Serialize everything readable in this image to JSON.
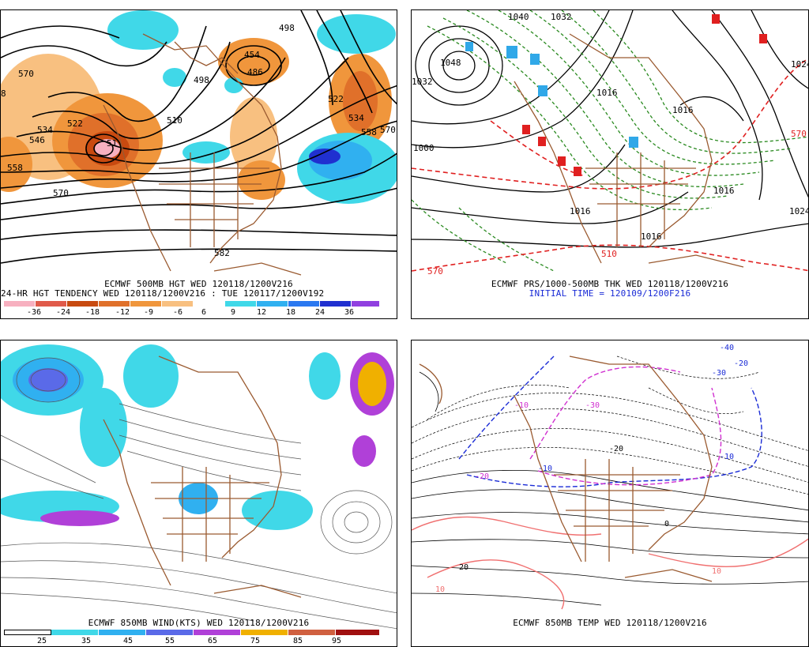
{
  "panels": {
    "tl": {
      "caption_line1": "ECMWF 500MB HGT WED 120118/1200V216",
      "caption_line2": "24-HR HGT TENDENCY WED 120118/1200V216 : TUE 120117/1200V192",
      "contour_labels": [
        "570",
        "498",
        "454",
        "486",
        "498",
        "510",
        "534",
        "522",
        "546",
        "558",
        "570",
        "582",
        "522",
        "534",
        "570",
        "558",
        "51",
        "8"
      ],
      "scale_labels": [
        "-36",
        "-24",
        "-18",
        "-12",
        "-9",
        "-6",
        "6",
        "9",
        "12",
        "18",
        "24",
        "36"
      ],
      "scale_colors": [
        "#f7b0c0",
        "#e05a4a",
        "#c84a10",
        "#e0702a",
        "#f0963c",
        "#f8c080",
        "#ffffff",
        "#40d8e8",
        "#30b0f0",
        "#2a78f0",
        "#2030d0",
        "#9040e0"
      ]
    },
    "tr": {
      "caption_line1": "ECMWF PRS/1000-500MB THK WED 120118/1200V216",
      "caption_line2": "INITIAL TIME = 120109/1200F216",
      "contour_labels": [
        "1040",
        "1032",
        "1048",
        "1032",
        "1016",
        "1000",
        "1016",
        "1024",
        "1016",
        "1024",
        "1016",
        "1016",
        "570",
        "510",
        "570"
      ]
    },
    "bl": {
      "caption_line1": "ECMWF 850MB WIND(KTS) WED 120118/1200V216",
      "scale_labels": [
        "25",
        "35",
        "45",
        "55",
        "65",
        "75",
        "85",
        "95"
      ],
      "scale_colors": [
        "#ffffff",
        "#40d8e8",
        "#30b0f0",
        "#5a6ae8",
        "#b040d8",
        "#f0b000",
        "#d06040",
        "#a01010"
      ]
    },
    "br": {
      "caption_line1": "ECMWF 850MB TEMP WED 120118/1200V216",
      "contour_labels": [
        "-40",
        "-30",
        "-20",
        "-10",
        "-30",
        "-20",
        "-10",
        "10",
        "10",
        "20",
        "0",
        "-10",
        "-20"
      ]
    }
  },
  "colors": {
    "coast": "#9a5a30",
    "orange": "#f0963c",
    "cyan": "#40d8e8",
    "green": "#2a8a20",
    "red": "#e02020",
    "blue": "#1a2bd6",
    "magenta": "#d030d0",
    "pink": "#f07070"
  }
}
